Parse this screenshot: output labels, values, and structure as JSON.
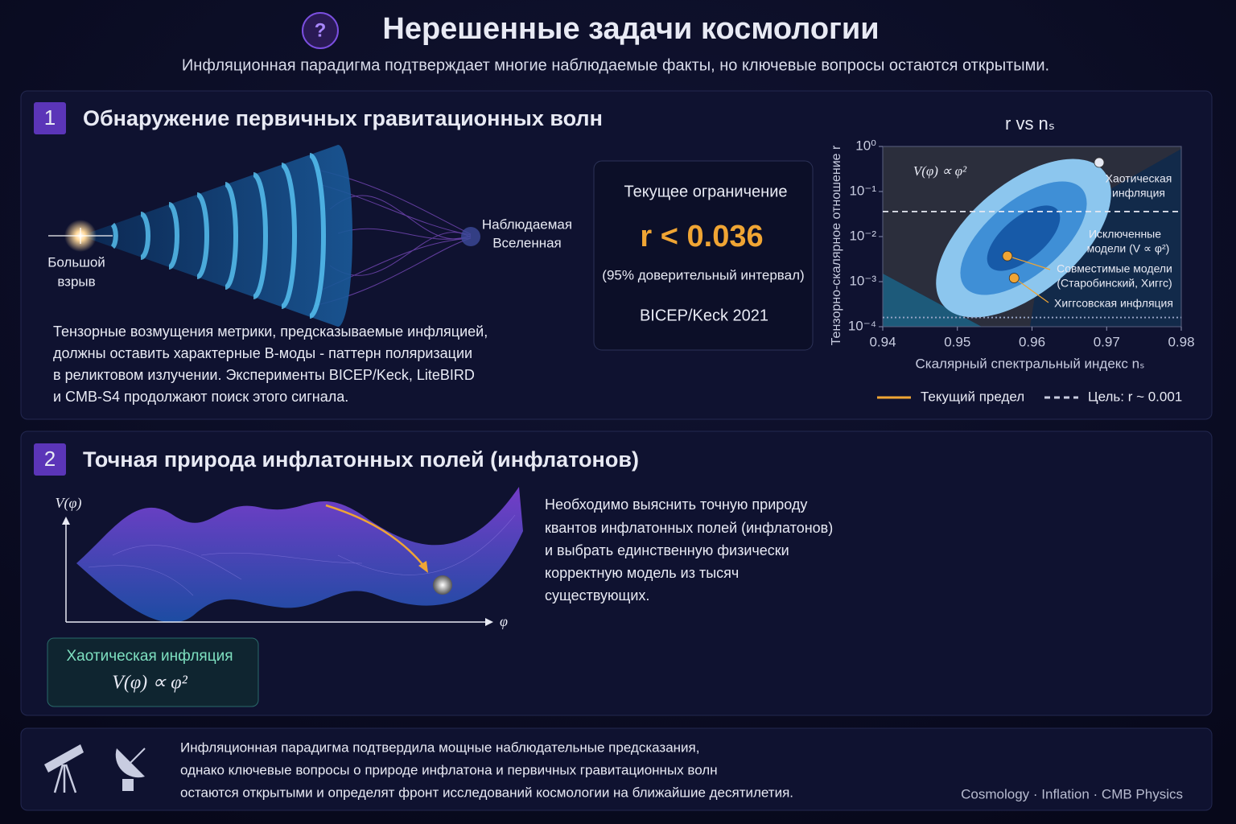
{
  "header": {
    "icon": "?",
    "title": "Нерешенные задачи космологии",
    "subtitle": "Инфляционная парадигма подтверждает многие наблюдаемые факты, но ключевые вопросы остаются открытыми."
  },
  "section1": {
    "number": "1",
    "title": "Обнаружение первичных гравитационных волн",
    "illustration": {
      "start_label": [
        "Большой",
        "взрыв"
      ],
      "end_label": [
        "Наблюдаемая",
        "Вселенная"
      ]
    },
    "constraint": {
      "heading": "Текущее ограничение",
      "value": "r < 0.036",
      "note": "(95% доверительный интервал)",
      "source": "BICEP/Keck 2021"
    },
    "text": [
      "Тензорные возмущения метрики, предсказываемые инфляцией,",
      "должны оставить характерные B-моды - паттерн поляризации",
      "в реликтовом излучении. Эксперименты BICEP/Keck, LiteBIRD",
      "и CMB-S4 продолжают поиск этого сигнала."
    ]
  },
  "chart_data": {
    "type": "scatter",
    "title": "r vs nₛ",
    "x_label": "Скалярный спектральный индекс nₛ",
    "y_label": "Тензорно-скалярное отношение r",
    "xlim": [
      0.94,
      0.98
    ],
    "xticks": [
      0.94,
      0.95,
      0.96,
      0.97,
      0.98
    ],
    "ylim": [
      0.0001,
      1
    ],
    "ylog": true,
    "yticks": [
      {
        "value": 1,
        "label": "10⁰"
      },
      {
        "value": 0.1,
        "label": "10⁻¹"
      },
      {
        "value": 0.01,
        "label": "10⁻²"
      },
      {
        "value": 0.001,
        "label": "10⁻³"
      },
      {
        "value": 0.0001,
        "label": "10⁻⁴"
      }
    ],
    "points": [
      {
        "x": 0.969,
        "y": 0.44,
        "color": "#e6e8f2"
      },
      {
        "x": 0.9567,
        "y": 0.0037,
        "color": "#f0a534"
      },
      {
        "x": 0.9576,
        "y": 0.0012,
        "color": "#f0a534"
      }
    ],
    "hlines": [
      {
        "value": 0.036,
        "style": "dashed",
        "color": "#e6e8f2"
      },
      {
        "value": 0.00016,
        "style": "dotted",
        "color": "#9aa6c8"
      }
    ],
    "annotations": [
      [
        "V(φ) ∝ φ²"
      ],
      [
        "Хаотическая",
        "инфляция"
      ],
      [
        "Исключенные",
        "модели (V ∝ φ²)"
      ],
      [
        "Совместимые модели",
        "(Старобинский, Хиггс)"
      ],
      [
        "Хиггсовская инфляция"
      ]
    ],
    "legend": [
      {
        "name": "Текущий предел",
        "color": "#f0a534",
        "style": "solid"
      },
      {
        "name": "Цель: r ~ 0.001",
        "color": "#c8cce0",
        "style": "dashed"
      }
    ]
  },
  "section2": {
    "number": "2",
    "title": "Точная природа инфлатонных полей (инфлатонов)",
    "y_axis": "V(φ)",
    "x_axis": "φ",
    "box": {
      "heading": "Хаотическая инфляция",
      "formula": "V(φ) ∝ φ²"
    },
    "text": [
      "Необходимо выяснить точную природу",
      "квантов инфлатонных полей (инфлатонов)",
      "и выбрать единственную физически",
      "корректную модель из тысяч",
      "существующих."
    ]
  },
  "footer": {
    "lines": [
      "Инфляционная парадигма подтвердила мощные наблюдательные предсказания,",
      "однако ключевые вопросы о природе инфлатона и первичных гравитационных волн",
      "остаются открытыми и определят фронт исследований космологии на ближайшие десятилетия."
    ],
    "tags": "Cosmology · Inflation · CMB Physics"
  }
}
